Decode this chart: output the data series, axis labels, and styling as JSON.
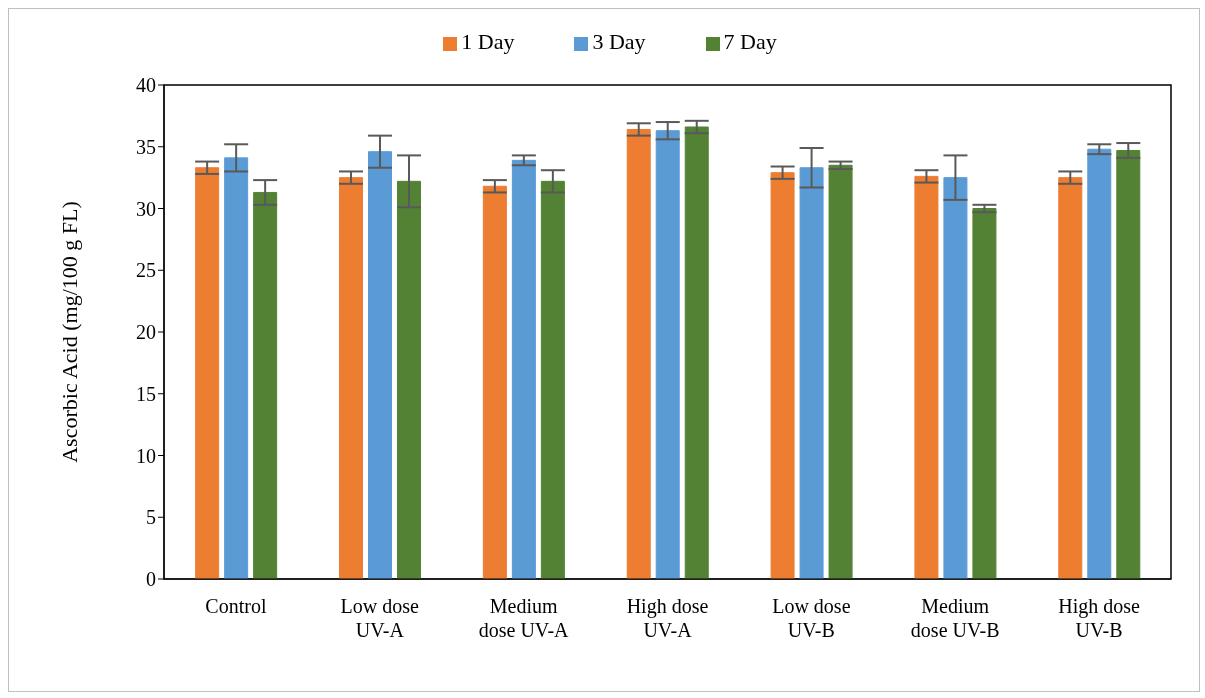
{
  "chart_data": {
    "type": "bar",
    "ylabel": "Ascorbic Acid (mg/100 g FL)",
    "categories": [
      "Control",
      "Low dose\nUV-A",
      "Medium\ndose UV-A",
      "High dose\nUV-A",
      "Low dose\nUV-B",
      "Medium\ndose UV-B",
      "High dose\nUV-B"
    ],
    "series": [
      {
        "name": "1 Day",
        "color": "#ed7d31",
        "values": [
          33.3,
          32.5,
          31.8,
          36.4,
          32.9,
          32.6,
          32.5
        ],
        "errors": [
          0.5,
          0.5,
          0.5,
          0.5,
          0.5,
          0.5,
          0.5
        ]
      },
      {
        "name": "3 Day",
        "color": "#5b9bd5",
        "values": [
          34.1,
          34.6,
          33.9,
          36.3,
          33.3,
          32.5,
          34.8
        ],
        "errors": [
          1.1,
          1.3,
          0.4,
          0.7,
          1.6,
          1.8,
          0.4
        ]
      },
      {
        "name": "7 Day",
        "color": "#548235",
        "values": [
          31.3,
          32.2,
          32.2,
          36.6,
          33.5,
          30.0,
          34.7
        ],
        "errors": [
          1.0,
          2.1,
          0.9,
          0.5,
          0.3,
          0.3,
          0.6
        ]
      }
    ],
    "ylim": [
      0,
      40
    ],
    "yticks": [
      0,
      5,
      10,
      15,
      20,
      25,
      30,
      35,
      40
    ],
    "legend": "top"
  }
}
